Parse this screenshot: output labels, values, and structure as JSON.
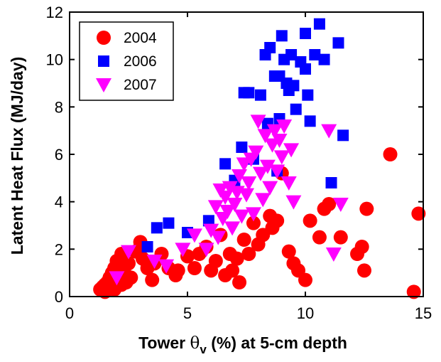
{
  "chart_data": {
    "type": "scatter",
    "xlabel_prefix": "Tower ",
    "xlabel_theta": "θ",
    "xlabel_sub": "v",
    "xlabel_suffix": " (%)  at 5-cm depth",
    "ylabel": "Latent Heat Flux (MJ/day)",
    "xlim": [
      0,
      15
    ],
    "ylim": [
      0,
      12
    ],
    "xticks": [
      0,
      5,
      10,
      15
    ],
    "yticks": [
      0,
      2,
      4,
      6,
      8,
      10,
      12
    ],
    "grid": false,
    "legend_position": "top-left",
    "series": [
      {
        "name": "2004",
        "marker": "circle",
        "color": "#ff0000",
        "points": [
          [
            1.3,
            0.3
          ],
          [
            1.4,
            0.4
          ],
          [
            1.5,
            0.5
          ],
          [
            1.5,
            0.2
          ],
          [
            1.6,
            0.6
          ],
          [
            1.6,
            0.3
          ],
          [
            1.7,
            0.8
          ],
          [
            1.7,
            0.4
          ],
          [
            1.8,
            1.0
          ],
          [
            1.8,
            0.5
          ],
          [
            1.9,
            1.2
          ],
          [
            1.9,
            0.3
          ],
          [
            2.0,
            0.7
          ],
          [
            2.0,
            1.5
          ],
          [
            2.1,
            0.9
          ],
          [
            2.2,
            0.5
          ],
          [
            2.2,
            1.8
          ],
          [
            2.3,
            1.1
          ],
          [
            2.4,
            0.6
          ],
          [
            2.5,
            1.4
          ],
          [
            2.6,
            0.8
          ],
          [
            2.8,
            1.9
          ],
          [
            3.0,
            2.3
          ],
          [
            3.1,
            1.6
          ],
          [
            3.3,
            1.2
          ],
          [
            3.5,
            0.7
          ],
          [
            3.6,
            1.4
          ],
          [
            3.9,
            1.8
          ],
          [
            4.2,
            1.2
          ],
          [
            4.5,
            0.9
          ],
          [
            4.6,
            1.1
          ],
          [
            5.0,
            1.7
          ],
          [
            5.3,
            1.2
          ],
          [
            5.5,
            1.8
          ],
          [
            5.8,
            2.1
          ],
          [
            6.0,
            1.1
          ],
          [
            6.2,
            1.5
          ],
          [
            6.4,
            2.6
          ],
          [
            6.6,
            0.9
          ],
          [
            6.8,
            1.8
          ],
          [
            6.9,
            1.1
          ],
          [
            7.1,
            1.6
          ],
          [
            7.2,
            0.6
          ],
          [
            7.4,
            2.4
          ],
          [
            7.6,
            1.8
          ],
          [
            7.8,
            3.1
          ],
          [
            8.0,
            2.2
          ],
          [
            8.2,
            2.6
          ],
          [
            8.5,
            3.4
          ],
          [
            8.6,
            2.9
          ],
          [
            8.8,
            3.2
          ],
          [
            9.0,
            5.2
          ],
          [
            9.3,
            1.9
          ],
          [
            9.5,
            1.4
          ],
          [
            9.7,
            1.1
          ],
          [
            10.0,
            0.7
          ],
          [
            10.2,
            3.2
          ],
          [
            10.6,
            2.5
          ],
          [
            10.8,
            3.7
          ],
          [
            11.0,
            3.9
          ],
          [
            11.5,
            2.5
          ],
          [
            12.2,
            1.8
          ],
          [
            12.4,
            2.1
          ],
          [
            12.5,
            1.1
          ],
          [
            12.6,
            3.7
          ],
          [
            13.6,
            6.0
          ],
          [
            14.6,
            0.2
          ],
          [
            14.8,
            3.5
          ]
        ]
      },
      {
        "name": "2006",
        "marker": "square",
        "color": "#0000ff",
        "points": [
          [
            3.3,
            2.1
          ],
          [
            3.7,
            2.9
          ],
          [
            4.2,
            3.1
          ],
          [
            5.0,
            2.7
          ],
          [
            5.9,
            3.2
          ],
          [
            6.6,
            5.6
          ],
          [
            7.0,
            4.9
          ],
          [
            7.3,
            6.3
          ],
          [
            7.4,
            8.6
          ],
          [
            7.6,
            8.6
          ],
          [
            7.8,
            5.8
          ],
          [
            8.1,
            8.5
          ],
          [
            8.3,
            10.2
          ],
          [
            8.4,
            7.3
          ],
          [
            8.5,
            10.5
          ],
          [
            8.7,
            9.3
          ],
          [
            8.8,
            5.3
          ],
          [
            8.9,
            7.5
          ],
          [
            8.9,
            9.3
          ],
          [
            9.0,
            11.0
          ],
          [
            9.1,
            10.0
          ],
          [
            9.2,
            9.0
          ],
          [
            9.3,
            8.7
          ],
          [
            9.4,
            10.2
          ],
          [
            9.5,
            8.9
          ],
          [
            9.6,
            7.9
          ],
          [
            9.8,
            9.9
          ],
          [
            10.0,
            11.1
          ],
          [
            10.0,
            9.6
          ],
          [
            10.1,
            8.5
          ],
          [
            10.2,
            7.4
          ],
          [
            10.4,
            10.2
          ],
          [
            10.6,
            11.5
          ],
          [
            10.8,
            10.0
          ],
          [
            11.1,
            4.8
          ],
          [
            11.4,
            10.7
          ],
          [
            11.6,
            6.8
          ]
        ]
      },
      {
        "name": "2007",
        "marker": "triangle-down",
        "color": "#ff00ff",
        "points": [
          [
            2.0,
            0.8
          ],
          [
            2.5,
            1.9
          ],
          [
            3.6,
            1.5
          ],
          [
            4.1,
            1.3
          ],
          [
            4.8,
            2.0
          ],
          [
            5.3,
            2.6
          ],
          [
            5.8,
            2.0
          ],
          [
            6.0,
            2.8
          ],
          [
            6.2,
            3.8
          ],
          [
            6.3,
            2.5
          ],
          [
            6.4,
            4.5
          ],
          [
            6.5,
            3.3
          ],
          [
            6.6,
            4.2
          ],
          [
            6.7,
            3.6
          ],
          [
            6.8,
            4.6
          ],
          [
            6.9,
            2.9
          ],
          [
            7.0,
            3.9
          ],
          [
            7.1,
            4.4
          ],
          [
            7.2,
            5.1
          ],
          [
            7.3,
            3.4
          ],
          [
            7.4,
            5.6
          ],
          [
            7.5,
            4.3
          ],
          [
            7.6,
            4.8
          ],
          [
            7.7,
            5.8
          ],
          [
            7.8,
            3.5
          ],
          [
            7.9,
            6.1
          ],
          [
            8.0,
            7.4
          ],
          [
            8.1,
            5.2
          ],
          [
            8.2,
            4.1
          ],
          [
            8.3,
            6.8
          ],
          [
            8.4,
            5.5
          ],
          [
            8.5,
            4.6
          ],
          [
            8.6,
            6.4
          ],
          [
            8.7,
            7.0
          ],
          [
            8.8,
            5.3
          ],
          [
            8.9,
            6.6
          ],
          [
            9.0,
            5.9
          ],
          [
            9.1,
            7.2
          ],
          [
            9.3,
            4.8
          ],
          [
            9.4,
            6.2
          ],
          [
            9.5,
            4.0
          ],
          [
            11.0,
            7.0
          ],
          [
            11.2,
            1.8
          ],
          [
            11.5,
            3.9
          ]
        ]
      }
    ]
  }
}
